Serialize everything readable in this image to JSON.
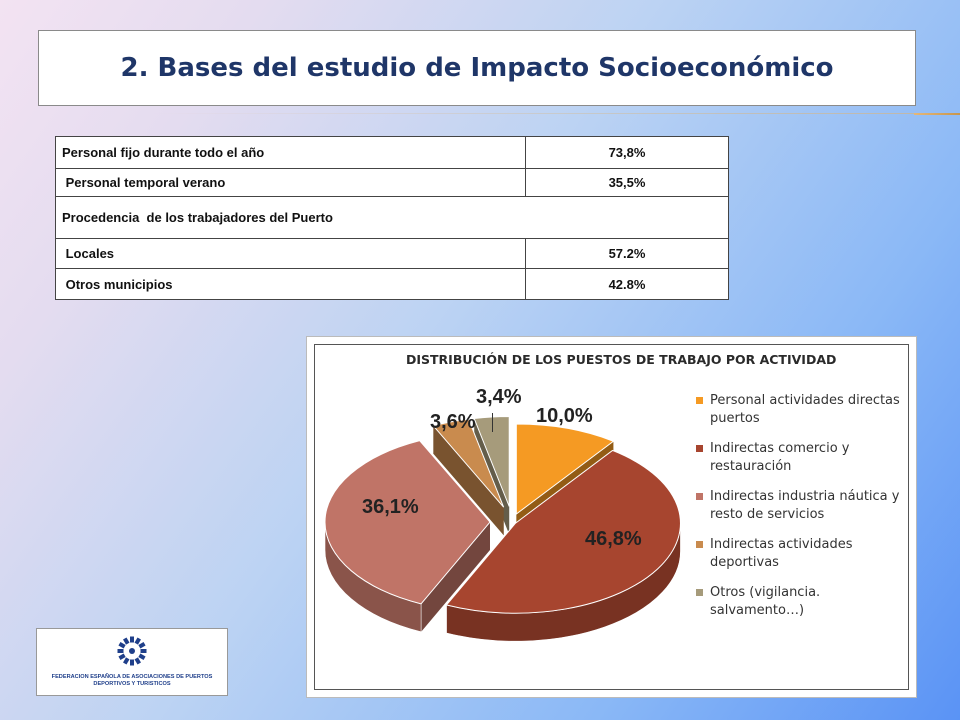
{
  "slide": {
    "title": "2. Bases del estudio de Impacto Socioeconómico"
  },
  "table": {
    "rows": [
      {
        "label": "Personal fijo durante todo el año",
        "value": "73,8%"
      },
      {
        "label": " Personal temporal verano",
        "value": "35,5%"
      },
      {
        "label": "Procedencia  de los trabajadores del Puerto",
        "value": ""
      },
      {
        "label": " Locales",
        "value": "57.2%"
      },
      {
        "label": " Otros municipios",
        "value": "42.8%"
      }
    ]
  },
  "logo": {
    "line1": "FEDERACION ESPAÑOLA DE ASOCIACIONES DE PUERTOS",
    "line2": "DEPORTIVOS Y TURISTICOS",
    "color": "#1f3f8a"
  },
  "chart_data": {
    "type": "pie",
    "title": "DISTRIBUCIÓN DE LOS PUESTOS DE TRABAJO POR ACTIVIDAD",
    "legend_position": "right",
    "slices": [
      {
        "label": "Personal actividades directas puertos",
        "value": 10.0,
        "display": "10,0%",
        "color": "#f59a23"
      },
      {
        "label": "Indirectas comercio y restauración",
        "value": 46.8,
        "display": "46,8%",
        "color": "#a7452f"
      },
      {
        "label": "Indirectas industria náutica y resto de servicios",
        "value": 36.1,
        "display": "36,1%",
        "color": "#c07467"
      },
      {
        "label": "Indirectas actividades deportivas",
        "value": 3.6,
        "display": "3,6%",
        "color": "#c98b4e"
      },
      {
        "label": "Otros (vigilancia. salvamento…)",
        "value": 3.4,
        "display": "3,4%",
        "color": "#a69b7b"
      }
    ]
  }
}
